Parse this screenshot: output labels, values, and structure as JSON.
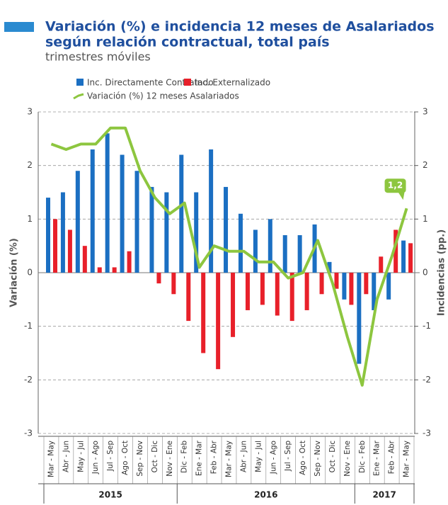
{
  "chart_data": {
    "type": "bar_line",
    "title": "Variación (%) e incidencia 12 meses de Asalariados",
    "title_line2": "según relación contractual, total país",
    "subtitle": "trimestres móviles",
    "ylabel": "Variación (%)",
    "y2label": "Incidencias (pp.)",
    "categories": [
      "Mar - May",
      "Abr - Jun",
      "May - Jul",
      "Jun - Ago",
      "Jul - Sep",
      "Ago - Oct",
      "Sep - Nov",
      "Oct - Dic",
      "Nov - Ene",
      "Dic - Feb",
      "Ene - Mar",
      "Feb - Abr",
      "Mar - May",
      "Abr - Jun",
      "May - Jul",
      "Jun - Ago",
      "Jul - Sep",
      "Ago - Oct",
      "Sep - Nov",
      "Oct - Dic",
      "Nov - Ene",
      "Dic - Feb",
      "Ene - Mar",
      "Feb - Abr",
      "Mar - May"
    ],
    "years": [
      "2015",
      "2016",
      "2017"
    ],
    "series": [
      {
        "name": "Inc. Directamente Contratado",
        "color": "#1b6fc2",
        "kind": "bar",
        "axis": "y2",
        "values": [
          1.4,
          1.5,
          1.9,
          2.3,
          2.6,
          2.2,
          1.9,
          1.6,
          1.5,
          2.2,
          1.5,
          2.3,
          1.6,
          1.1,
          0.8,
          1.0,
          0.7,
          0.7,
          0.9,
          0.2,
          -0.5,
          -1.7,
          -0.7,
          -0.5,
          0.6
        ]
      },
      {
        "name": "Inc. Externalizado",
        "color": "#e8202a",
        "kind": "bar",
        "axis": "y2",
        "values": [
          1.0,
          0.8,
          0.5,
          0.1,
          0.1,
          0.4,
          0,
          -0.2,
          -0.4,
          -0.9,
          -1.5,
          -1.8,
          -1.2,
          -0.7,
          -0.6,
          -0.8,
          -0.9,
          -0.7,
          -0.4,
          -0.3,
          -0.6,
          -0.4,
          0.3,
          0.8,
          0.55
        ]
      },
      {
        "name": "Variación (%) 12 meses Asalariados",
        "color": "#8dc63f",
        "kind": "line",
        "values": [
          2.4,
          2.3,
          2.4,
          2.4,
          2.7,
          2.7,
          1.9,
          1.4,
          1.1,
          1.3,
          0.1,
          0.5,
          0.4,
          0.4,
          0.2,
          0.2,
          -0.1,
          0.0,
          0.6,
          -0.2,
          -1.2,
          -2.1,
          -0.5,
          0.3,
          1.2
        ]
      }
    ],
    "annotation": "1,2",
    "ylim": [
      -3,
      3
    ],
    "yticks": [
      -3,
      -2,
      -1,
      0,
      1,
      2,
      3
    ],
    "y2lim": [
      -3,
      3
    ],
    "y2ticks": [
      -3,
      -2,
      -1,
      0,
      1,
      2,
      3
    ],
    "grid": true
  }
}
